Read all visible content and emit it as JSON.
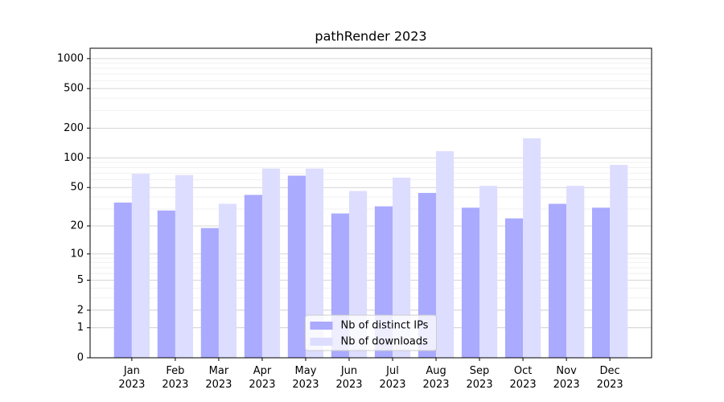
{
  "chart_data": {
    "type": "bar",
    "title": "pathRender 2023",
    "categories": [
      "Jan\n2023",
      "Feb\n2023",
      "Mar\n2023",
      "Apr\n2023",
      "May\n2023",
      "Jun\n2023",
      "Jul\n2023",
      "Aug\n2023",
      "Sep\n2023",
      "Oct\n2023",
      "Nov\n2023",
      "Dec\n2023"
    ],
    "series": [
      {
        "name": "Nb of distinct IPs",
        "color": "#aaaaff",
        "values": [
          35,
          29,
          19,
          42,
          66,
          27,
          32,
          44,
          31,
          24,
          34,
          31
        ]
      },
      {
        "name": "Nb of downloads",
        "color": "#ddddff",
        "values": [
          69,
          67,
          34,
          78,
          78,
          46,
          63,
          117,
          52,
          158,
          52,
          85
        ]
      }
    ],
    "yscale": "log1p",
    "ylim": [
      0,
      1270
    ],
    "yticks": [
      0,
      1,
      2,
      5,
      10,
      20,
      50,
      100,
      200,
      500,
      1000
    ],
    "minor_yticks": [
      3,
      4,
      6,
      7,
      8,
      9,
      30,
      40,
      60,
      70,
      80,
      90,
      300,
      400,
      600,
      700,
      800,
      900
    ],
    "grid": true,
    "legend": "lower center"
  }
}
